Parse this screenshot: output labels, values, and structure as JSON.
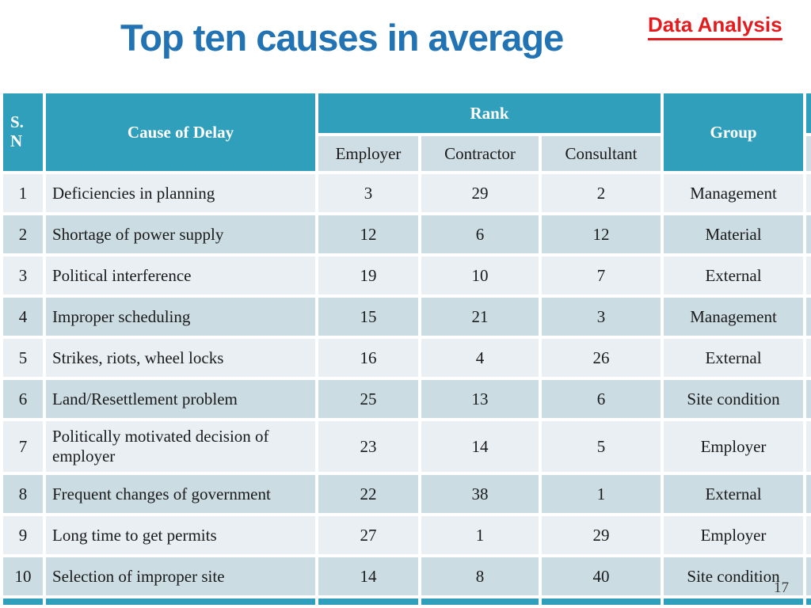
{
  "slide": {
    "title": "Top ten causes in average",
    "corner_label": "Data Analysis",
    "page_number": "17"
  },
  "colors": {
    "teal_header": "#2f9fbc",
    "title_blue": "#2173b4",
    "corner_red": "#e41b1e",
    "row_light": "#e9eff3",
    "row_dark": "#cbdce3",
    "subheader_bg": "#cfdde4",
    "header_text": "#ffffff"
  },
  "table": {
    "headers": {
      "sn": "S.\nN",
      "cause": "Cause of Delay",
      "rank": "Rank",
      "rank_sub": [
        "Employer",
        "Contractor",
        "Consultant"
      ],
      "group": "Group"
    },
    "rows": [
      {
        "sn": "1",
        "cause": "Deficiencies in planning",
        "employer": "3",
        "contractor": "29",
        "consultant": "2",
        "group": "Management"
      },
      {
        "sn": "2",
        "cause": "Shortage of power supply",
        "employer": "12",
        "contractor": "6",
        "consultant": "12",
        "group": "Material"
      },
      {
        "sn": "3",
        "cause": "Political interference",
        "employer": "19",
        "contractor": "10",
        "consultant": "7",
        "group": "External"
      },
      {
        "sn": "4",
        "cause": "Improper scheduling",
        "employer": "15",
        "contractor": "21",
        "consultant": "3",
        "group": "Management"
      },
      {
        "sn": "5",
        "cause": "Strikes, riots, wheel locks",
        "employer": "16",
        "contractor": "4",
        "consultant": "26",
        "group": "External"
      },
      {
        "sn": "6",
        "cause": "Land/Resettlement problem",
        "employer": "25",
        "contractor": "13",
        "consultant": "6",
        "group": "Site condition"
      },
      {
        "sn": "7",
        "cause": "Politically motivated decision of employer",
        "employer": "23",
        "contractor": "14",
        "consultant": "5",
        "group": "Employer"
      },
      {
        "sn": "8",
        "cause": "Frequent changes of government",
        "employer": "22",
        "contractor": "38",
        "consultant": "1",
        "group": "External"
      },
      {
        "sn": "9",
        "cause": "Long time to get permits",
        "employer": "27",
        "contractor": "1",
        "consultant": "29",
        "group": "Employer"
      },
      {
        "sn": "10",
        "cause": "Selection of improper site",
        "employer": "14",
        "contractor": "8",
        "consultant": "40",
        "group": "Site condition"
      }
    ]
  }
}
